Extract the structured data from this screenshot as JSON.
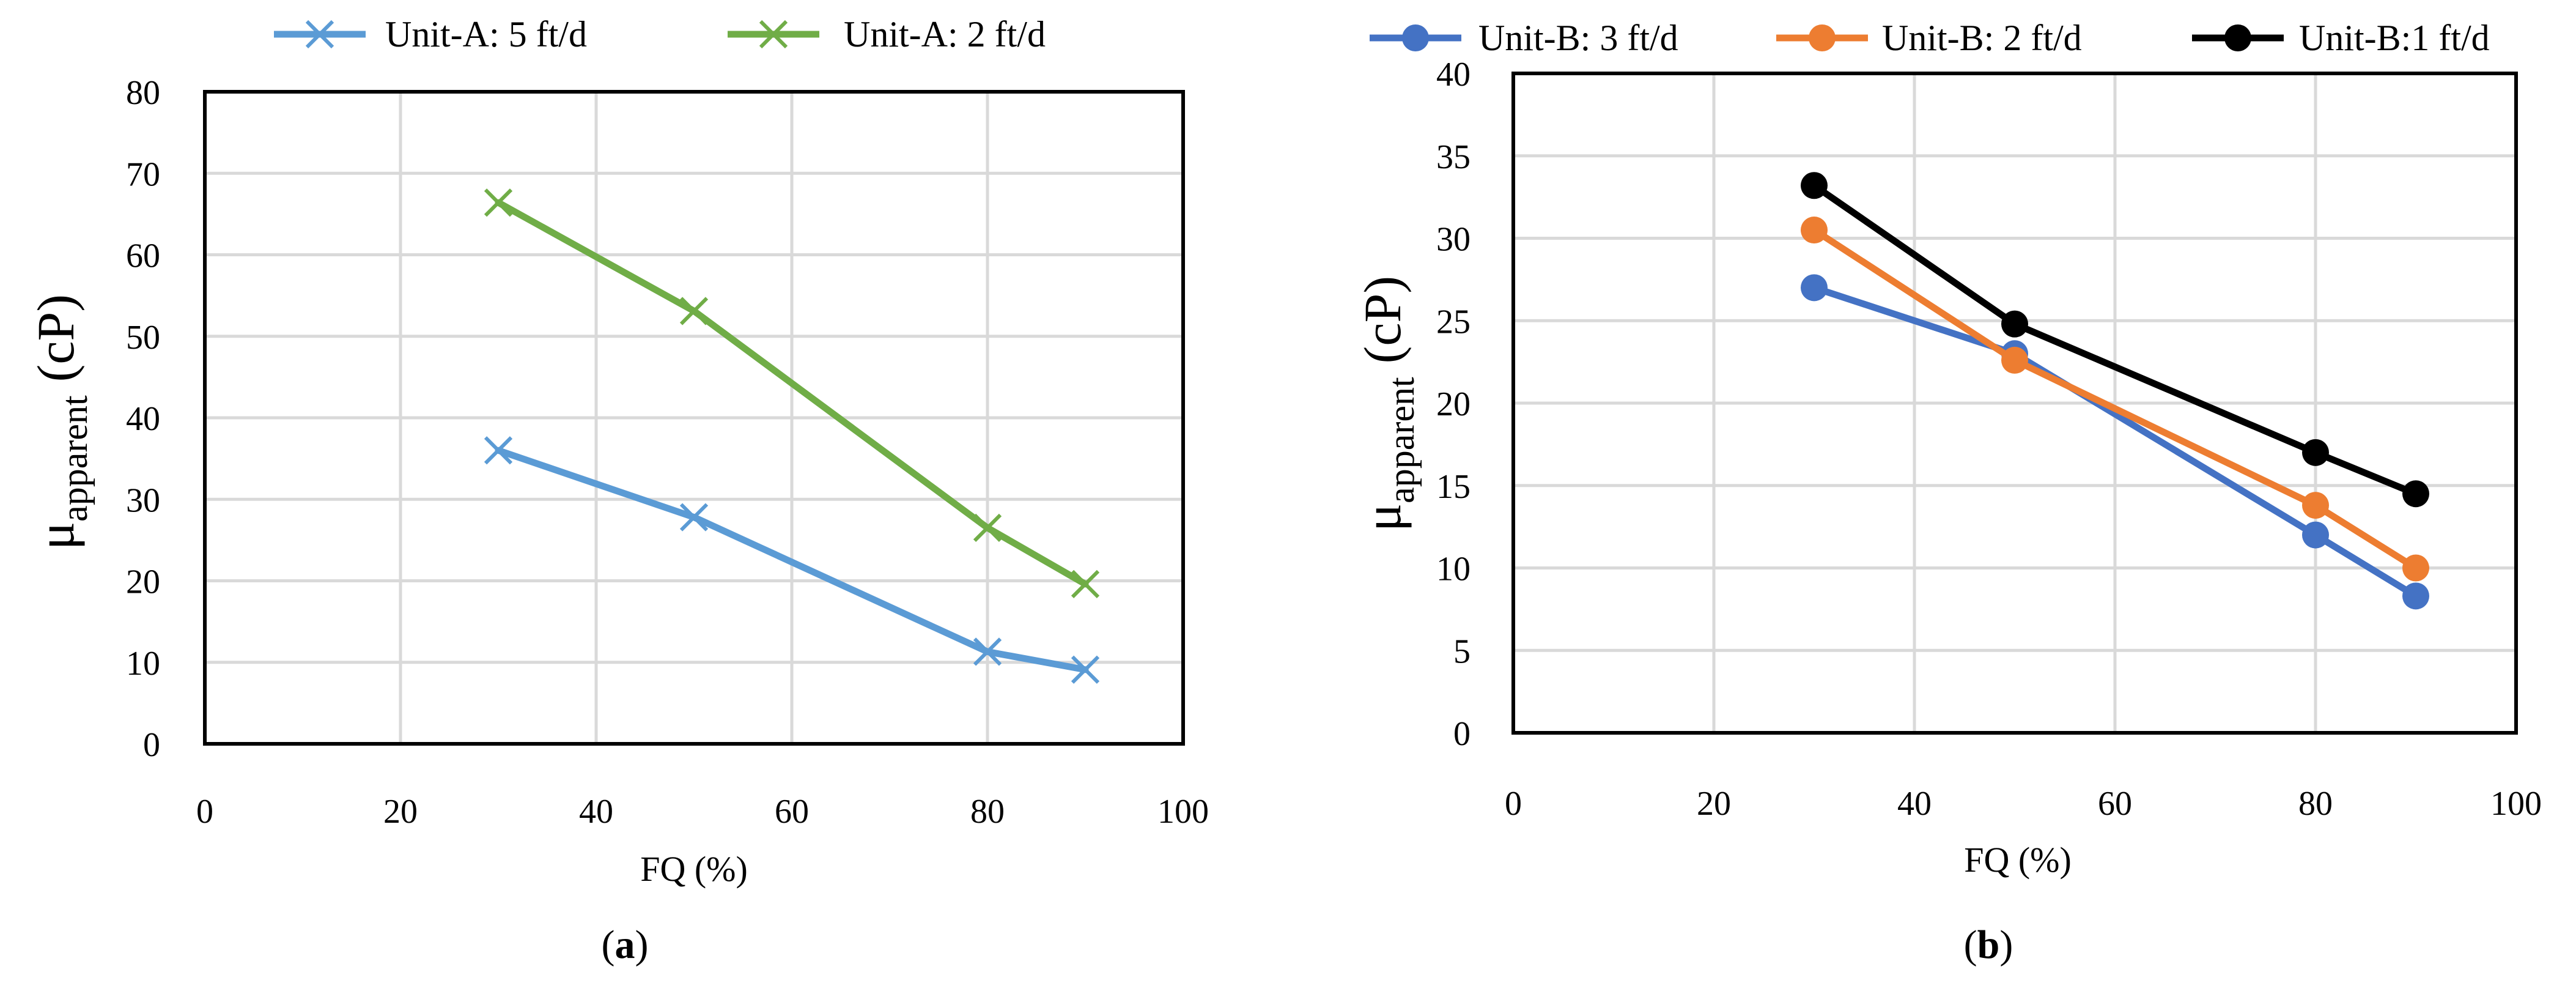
{
  "chart_data": [
    {
      "type": "line",
      "panel_label": "a",
      "xlabel": "FQ (%)",
      "ylabel": {
        "symbol": "μ",
        "subscript": "apparent",
        "unit": "(cP)"
      },
      "xlim": [
        0,
        100
      ],
      "ylim": [
        0,
        80
      ],
      "xticks": [
        0,
        20,
        40,
        60,
        80,
        100
      ],
      "yticks": [
        0,
        10,
        20,
        30,
        40,
        50,
        60,
        70,
        80
      ],
      "grid": true,
      "legend_position": "top",
      "series": [
        {
          "name": "Unit-A: 5 ft/d",
          "color": "#5b9bd5",
          "marker": "x",
          "x": [
            30,
            50,
            80,
            90
          ],
          "y": [
            36,
            27.8,
            11.3,
            9.1
          ]
        },
        {
          "name": "Unit-A: 2 ft/d",
          "color": "#70ad47",
          "marker": "x",
          "x": [
            30,
            50,
            80,
            90
          ],
          "y": [
            66.4,
            53.1,
            26.5,
            19.6
          ]
        }
      ]
    },
    {
      "type": "line",
      "panel_label": "b",
      "xlabel": "FQ (%)",
      "ylabel": {
        "symbol": "μ",
        "subscript": "apparent",
        "unit": "(cP)"
      },
      "xlim": [
        0,
        100
      ],
      "ylim": [
        0,
        40
      ],
      "xticks": [
        0,
        20,
        40,
        60,
        80,
        100
      ],
      "yticks": [
        0,
        5,
        10,
        15,
        20,
        25,
        30,
        35,
        40
      ],
      "grid": true,
      "legend_position": "top",
      "series": [
        {
          "name": "Unit-B: 3 ft/d",
          "color": "#4472c4",
          "marker": "circle",
          "x": [
            30,
            50,
            80,
            90
          ],
          "y": [
            27,
            23,
            12,
            8.3
          ]
        },
        {
          "name": "Unit-B: 2 ft/d",
          "color": "#ed7d31",
          "marker": "circle",
          "x": [
            30,
            50,
            80,
            90
          ],
          "y": [
            30.5,
            22.6,
            13.8,
            10
          ]
        },
        {
          "name": "Unit-B:1 ft/d",
          "color": "#000000",
          "marker": "circle",
          "x": [
            30,
            50,
            80,
            90
          ],
          "y": [
            33.2,
            24.8,
            17,
            14.5
          ]
        }
      ]
    }
  ]
}
